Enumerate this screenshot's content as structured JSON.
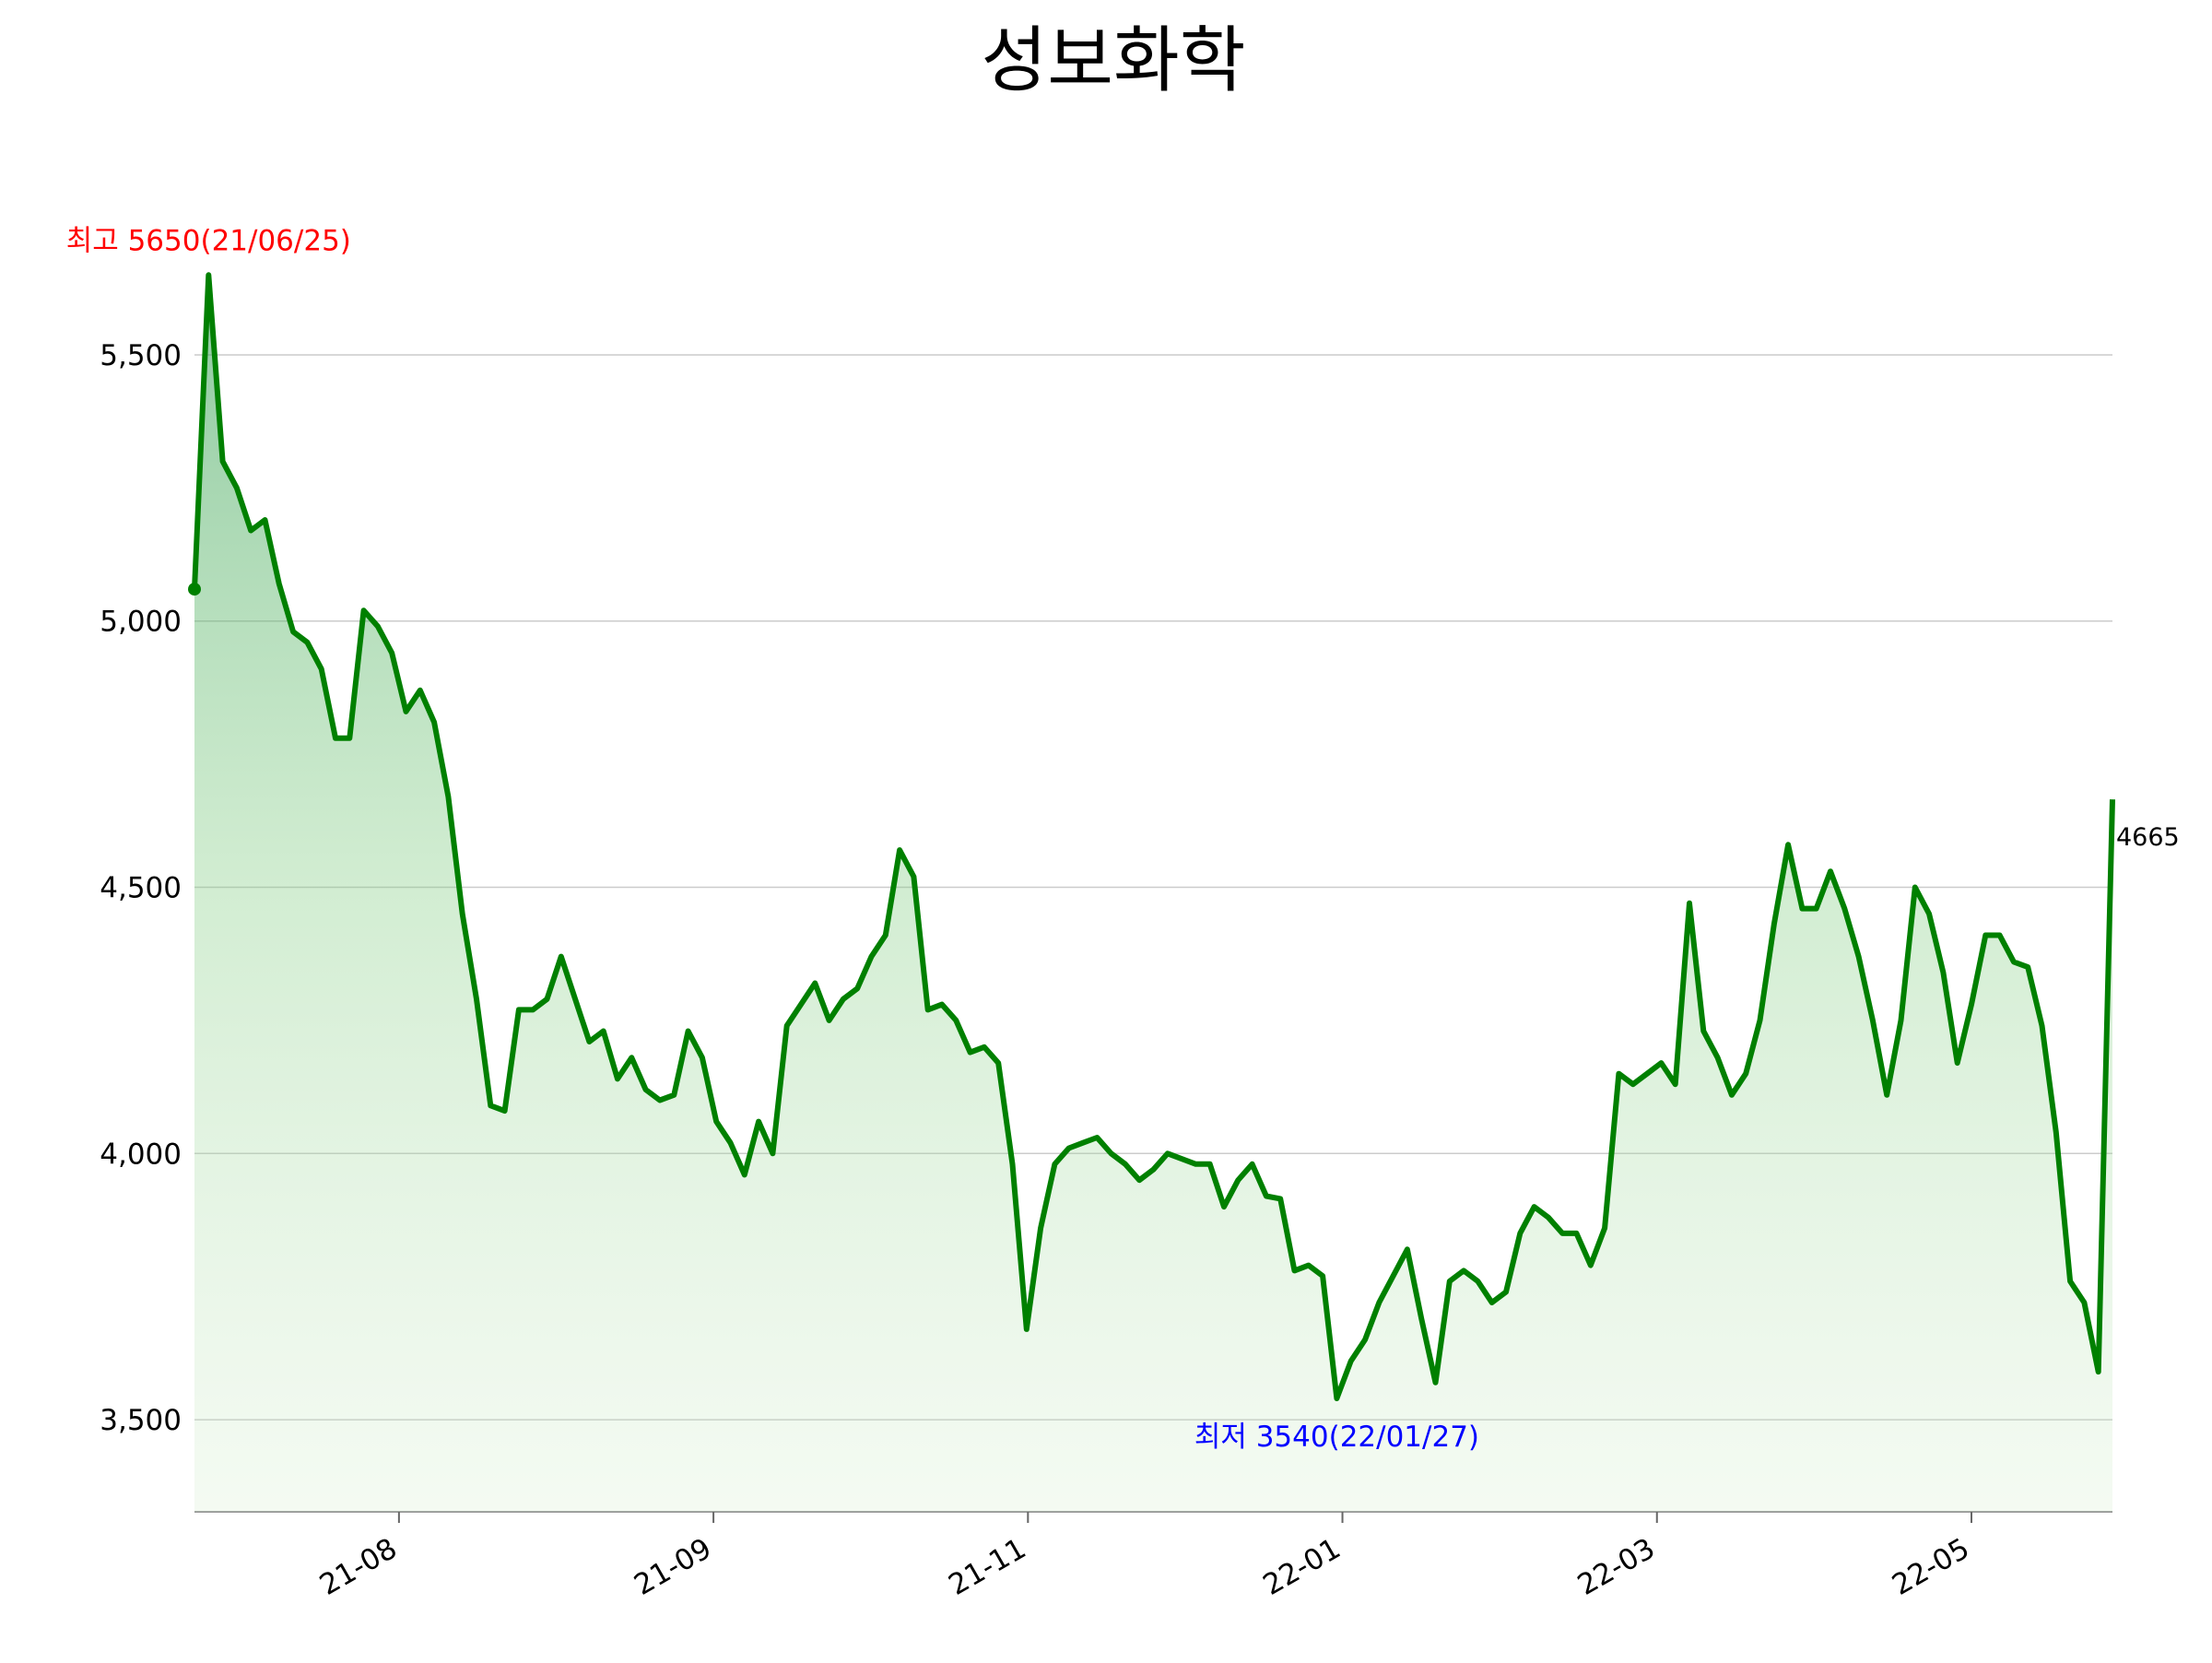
{
  "chart_data": {
    "type": "line",
    "title": "성보화학",
    "color": "#008000",
    "values": [
      5060,
      5650,
      5300,
      5250,
      5170,
      5190,
      5070,
      4980,
      4960,
      4910,
      4780,
      4780,
      5020,
      4990,
      4940,
      4830,
      4870,
      4810,
      4670,
      4450,
      4290,
      4090,
      4080,
      4270,
      4270,
      4290,
      4370,
      4290,
      4210,
      4230,
      4140,
      4180,
      4120,
      4100,
      4110,
      4230,
      4180,
      4060,
      4020,
      3960,
      4060,
      4000,
      4240,
      4280,
      4320,
      4250,
      4290,
      4310,
      4370,
      4410,
      4570,
      4520,
      4270,
      4280,
      4250,
      4190,
      4200,
      4170,
      3980,
      3670,
      3860,
      3980,
      4010,
      4020,
      4030,
      4000,
      3980,
      3950,
      3970,
      4000,
      3990,
      3980,
      3980,
      3900,
      3950,
      3980,
      3920,
      3915,
      3780,
      3790,
      3770,
      3540,
      3610,
      3650,
      3720,
      3770,
      3820,
      3690,
      3570,
      3760,
      3780,
      3760,
      3720,
      3740,
      3850,
      3900,
      3880,
      3850,
      3850,
      3790,
      3860,
      4150,
      4130,
      4150,
      4170,
      4130,
      4470,
      4230,
      4180,
      4110,
      4150,
      4250,
      4430,
      4580,
      4460,
      4460,
      4530,
      4460,
      4370,
      4250,
      4110,
      4250,
      4500,
      4450,
      4340,
      4170,
      4280,
      4410,
      4410,
      4360,
      4350,
      4240,
      4040,
      3760,
      3720,
      3590,
      4665
    ],
    "xlim": [
      0,
      136
    ],
    "xticks": [
      {
        "value": 14.5,
        "label": "21-08"
      },
      {
        "value": 36.8,
        "label": "21-09"
      },
      {
        "value": 59.1,
        "label": "21-11"
      },
      {
        "value": 81.4,
        "label": "22-01"
      },
      {
        "value": 103.7,
        "label": "22-03"
      },
      {
        "value": 126.0,
        "label": "22-05"
      }
    ],
    "ylim": [
      3327,
      5770
    ],
    "yticks": [
      {
        "value": 3500,
        "label": "3,500"
      },
      {
        "value": 4000,
        "label": "4,000"
      },
      {
        "value": 4500,
        "label": "4,500"
      },
      {
        "value": 5000,
        "label": "5,000"
      },
      {
        "value": 5500,
        "label": "5,500"
      }
    ],
    "grid": true,
    "max_label": "최고 5650(21/06/25)",
    "min_label": "최저 3540(22/01/27)"
  }
}
